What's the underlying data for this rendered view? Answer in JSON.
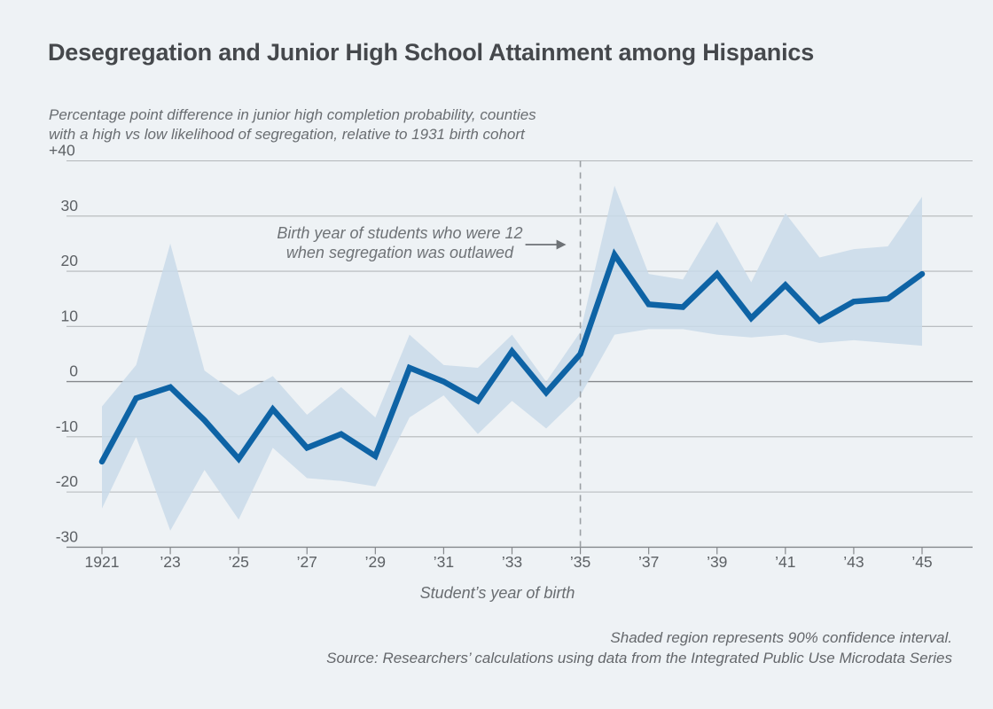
{
  "header": {
    "title": "Desegregation and Junior High School Attainment among Hispanics",
    "subtitle_line1": "Percentage point difference in junior high completion probability, counties",
    "subtitle_line2": "with a high vs low likelihood of segregation, relative to 1931 birth cohort"
  },
  "chart_data": {
    "type": "line",
    "x": [
      1921,
      1922,
      1923,
      1924,
      1925,
      1926,
      1927,
      1928,
      1929,
      1930,
      1931,
      1932,
      1933,
      1934,
      1935,
      1936,
      1937,
      1938,
      1939,
      1940,
      1941,
      1942,
      1943,
      1944,
      1945
    ],
    "series": [
      {
        "name": "Difference in junior high completion probability (pp)",
        "values": [
          -14.5,
          -3,
          -1,
          -7,
          -14,
          -5,
          -12,
          -9.5,
          -13.5,
          2.5,
          0,
          -3.5,
          5.5,
          -2,
          5,
          23,
          14,
          13.5,
          19.5,
          11.5,
          17.5,
          11,
          14.5,
          15,
          19.5
        ]
      }
    ],
    "band": {
      "name": "90% confidence interval",
      "upper": [
        -4.5,
        3,
        25,
        2,
        -2.5,
        1,
        -6,
        -1,
        -6.5,
        8.5,
        3,
        2.5,
        8.5,
        0,
        9,
        35.5,
        19.5,
        18.5,
        29,
        18,
        30.5,
        22.5,
        24,
        24.5,
        33.5
      ],
      "lower": [
        -23,
        -10,
        -27,
        -16,
        -25,
        -12,
        -17.5,
        -18,
        -19,
        -6.5,
        -2.5,
        -9.5,
        -3.5,
        -8.5,
        -2.5,
        8.5,
        9.5,
        9.5,
        8.5,
        8,
        8.5,
        7,
        7.5,
        7,
        6.5
      ]
    },
    "ylim": [
      -30,
      40
    ],
    "ytick_values": [
      40,
      30,
      20,
      10,
      0,
      -10,
      -20,
      -30
    ],
    "ytick_labels": [
      "+40",
      "30",
      "20",
      "10",
      "0",
      "-10",
      "-20",
      "-30"
    ],
    "xtick_years": [
      1921,
      1923,
      1925,
      1927,
      1929,
      1931,
      1933,
      1935,
      1937,
      1939,
      1941,
      1943,
      1945
    ],
    "xtick_labels": [
      "1921",
      "’23",
      "’25",
      "’27",
      "’29",
      "’31",
      "’33",
      "’35",
      "’37",
      "’39",
      "’41",
      "’43",
      "’45"
    ],
    "xlabel": "Student’s year of birth",
    "reference_line_year": 1935,
    "annotation": {
      "line1": "Birth year of students who were 12",
      "line2": "when segregation was outlawed",
      "points_to_year": 1935
    },
    "grid": true,
    "legend": "none"
  },
  "footer": {
    "note": "Shaded region represents 90% confidence interval.",
    "source": "Source: Researchers’ calculations using data from the Integrated Public Use Microdata Series"
  },
  "colors": {
    "background": "#eef2f5",
    "line": "#0e63a5",
    "band": "#c9dae9",
    "grid": "#b3b7ba",
    "axis": "#85888c",
    "dashed": "#9ba0a4",
    "text_dark": "#45484c",
    "text_gray": "#696d71"
  }
}
